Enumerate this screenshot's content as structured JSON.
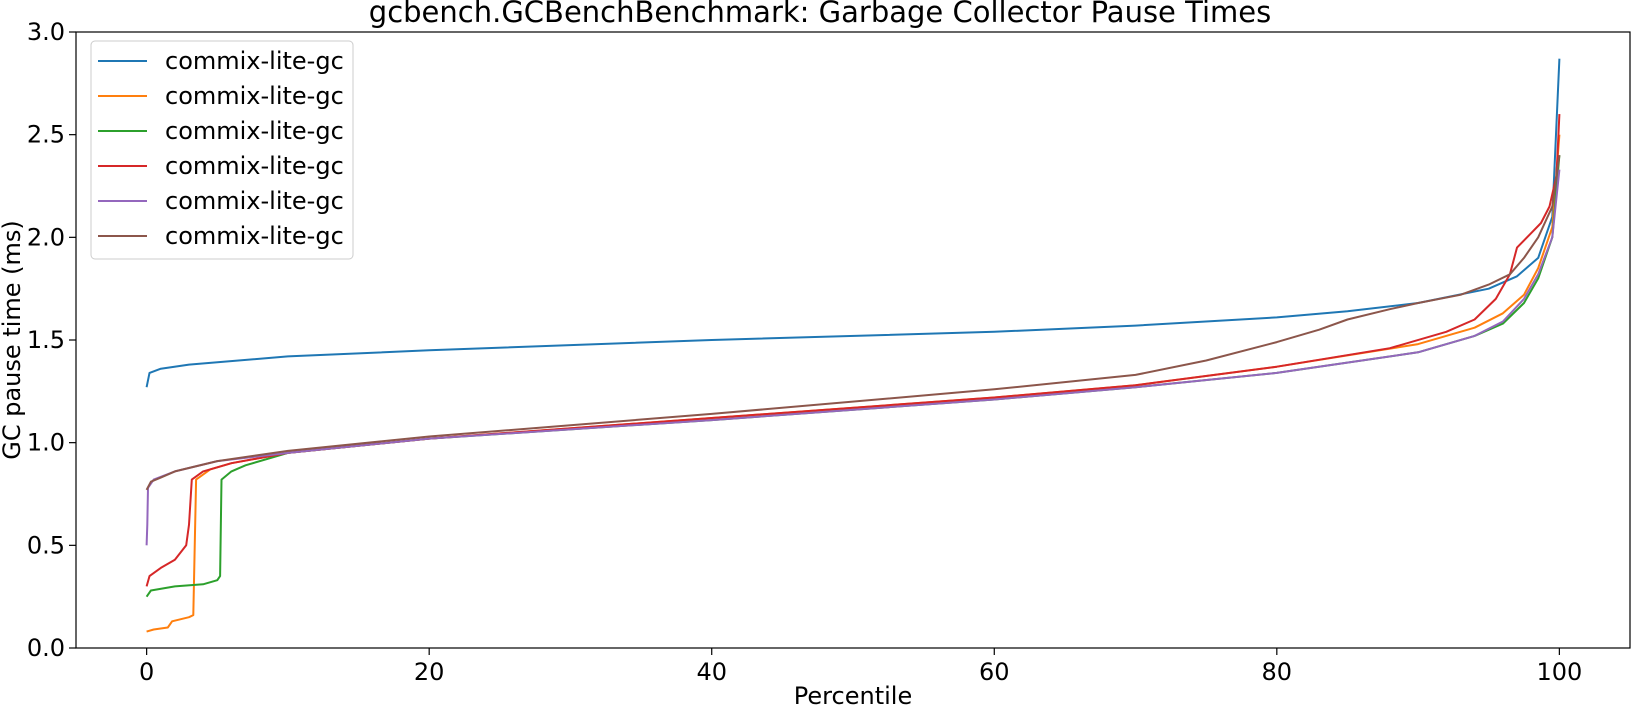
{
  "chart_data": {
    "type": "line",
    "title": "gcbench.GCBenchBenchmark: Garbage Collector Pause Times",
    "xlabel": "Percentile",
    "ylabel": "GC pause time (ms)",
    "xlim": [
      -5,
      105
    ],
    "ylim": [
      0.0,
      3.0
    ],
    "xticks": [
      0,
      20,
      40,
      60,
      80,
      100
    ],
    "yticks": [
      0.0,
      0.5,
      1.0,
      1.5,
      2.0,
      2.5,
      3.0
    ],
    "xtick_labels": [
      "0",
      "20",
      "40",
      "60",
      "80",
      "100"
    ],
    "ytick_labels": [
      "0.0",
      "0.5",
      "1.0",
      "1.5",
      "2.0",
      "2.5",
      "3.0"
    ],
    "grid": false,
    "legend": "top-left",
    "series": [
      {
        "name": "commix-lite-gc",
        "color": "#1f77b4",
        "points": [
          [
            0,
            1.27
          ],
          [
            0.2,
            1.34
          ],
          [
            1,
            1.36
          ],
          [
            3,
            1.38
          ],
          [
            10,
            1.42
          ],
          [
            20,
            1.45
          ],
          [
            40,
            1.5
          ],
          [
            60,
            1.54
          ],
          [
            70,
            1.57
          ],
          [
            80,
            1.61
          ],
          [
            85,
            1.64
          ],
          [
            90,
            1.68
          ],
          [
            95,
            1.75
          ],
          [
            97,
            1.81
          ],
          [
            98.5,
            1.9
          ],
          [
            99.5,
            2.1
          ],
          [
            100,
            2.87
          ]
        ]
      },
      {
        "name": "commix-lite-gc",
        "color": "#ff7f0e",
        "points": [
          [
            0,
            0.08
          ],
          [
            0.5,
            0.09
          ],
          [
            1.5,
            0.1
          ],
          [
            1.8,
            0.13
          ],
          [
            3.0,
            0.15
          ],
          [
            3.3,
            0.16
          ],
          [
            3.5,
            0.82
          ],
          [
            4.5,
            0.87
          ],
          [
            6,
            0.9
          ],
          [
            10,
            0.95
          ],
          [
            20,
            1.02
          ],
          [
            40,
            1.12
          ],
          [
            60,
            1.22
          ],
          [
            70,
            1.28
          ],
          [
            80,
            1.37
          ],
          [
            90,
            1.48
          ],
          [
            94,
            1.56
          ],
          [
            96,
            1.63
          ],
          [
            97.5,
            1.72
          ],
          [
            98.5,
            1.85
          ],
          [
            99.5,
            2.05
          ],
          [
            100,
            2.5
          ]
        ]
      },
      {
        "name": "commix-lite-gc",
        "color": "#2ca02c",
        "points": [
          [
            0,
            0.25
          ],
          [
            0.3,
            0.28
          ],
          [
            2,
            0.3
          ],
          [
            4,
            0.31
          ],
          [
            5.0,
            0.33
          ],
          [
            5.2,
            0.35
          ],
          [
            5.3,
            0.82
          ],
          [
            6,
            0.86
          ],
          [
            7,
            0.89
          ],
          [
            10,
            0.95
          ],
          [
            20,
            1.02
          ],
          [
            40,
            1.11
          ],
          [
            60,
            1.21
          ],
          [
            70,
            1.27
          ],
          [
            80,
            1.34
          ],
          [
            90,
            1.44
          ],
          [
            94,
            1.52
          ],
          [
            96,
            1.58
          ],
          [
            97.5,
            1.68
          ],
          [
            98.5,
            1.8
          ],
          [
            99.5,
            2.0
          ],
          [
            100,
            2.4
          ]
        ]
      },
      {
        "name": "commix-lite-gc",
        "color": "#d62728",
        "points": [
          [
            0,
            0.3
          ],
          [
            0.2,
            0.35
          ],
          [
            1,
            0.39
          ],
          [
            2,
            0.43
          ],
          [
            2.8,
            0.5
          ],
          [
            3.0,
            0.6
          ],
          [
            3.2,
            0.82
          ],
          [
            4,
            0.86
          ],
          [
            6,
            0.9
          ],
          [
            10,
            0.95
          ],
          [
            20,
            1.02
          ],
          [
            40,
            1.12
          ],
          [
            60,
            1.22
          ],
          [
            70,
            1.28
          ],
          [
            80,
            1.37
          ],
          [
            88,
            1.46
          ],
          [
            92,
            1.54
          ],
          [
            94,
            1.6
          ],
          [
            95.5,
            1.7
          ],
          [
            96.5,
            1.82
          ],
          [
            97,
            1.95
          ],
          [
            98,
            2.02
          ],
          [
            98.7,
            2.07
          ],
          [
            99.3,
            2.15
          ],
          [
            99.8,
            2.3
          ],
          [
            100,
            2.6
          ]
        ]
      },
      {
        "name": "commix-lite-gc",
        "color": "#9467bd",
        "points": [
          [
            0,
            0.5
          ],
          [
            0.05,
            0.6
          ],
          [
            0.1,
            0.78
          ],
          [
            0.5,
            0.82
          ],
          [
            2,
            0.86
          ],
          [
            5,
            0.91
          ],
          [
            10,
            0.95
          ],
          [
            20,
            1.02
          ],
          [
            40,
            1.11
          ],
          [
            60,
            1.21
          ],
          [
            70,
            1.27
          ],
          [
            80,
            1.34
          ],
          [
            90,
            1.44
          ],
          [
            94,
            1.52
          ],
          [
            96,
            1.59
          ],
          [
            97.5,
            1.7
          ],
          [
            98.5,
            1.82
          ],
          [
            99.5,
            2.0
          ],
          [
            100,
            2.33
          ]
        ]
      },
      {
        "name": "commix-lite-gc",
        "color": "#8c564b",
        "points": [
          [
            0,
            0.77
          ],
          [
            0.3,
            0.81
          ],
          [
            1,
            0.83
          ],
          [
            2,
            0.86
          ],
          [
            5,
            0.91
          ],
          [
            10,
            0.96
          ],
          [
            20,
            1.03
          ],
          [
            40,
            1.14
          ],
          [
            60,
            1.26
          ],
          [
            70,
            1.33
          ],
          [
            75,
            1.4
          ],
          [
            80,
            1.49
          ],
          [
            83,
            1.55
          ],
          [
            85,
            1.6
          ],
          [
            88,
            1.65
          ],
          [
            90,
            1.68
          ],
          [
            93,
            1.72
          ],
          [
            95,
            1.77
          ],
          [
            96.5,
            1.82
          ],
          [
            97.5,
            1.9
          ],
          [
            98.5,
            2.0
          ],
          [
            99.5,
            2.15
          ],
          [
            100,
            2.4
          ]
        ]
      }
    ]
  }
}
